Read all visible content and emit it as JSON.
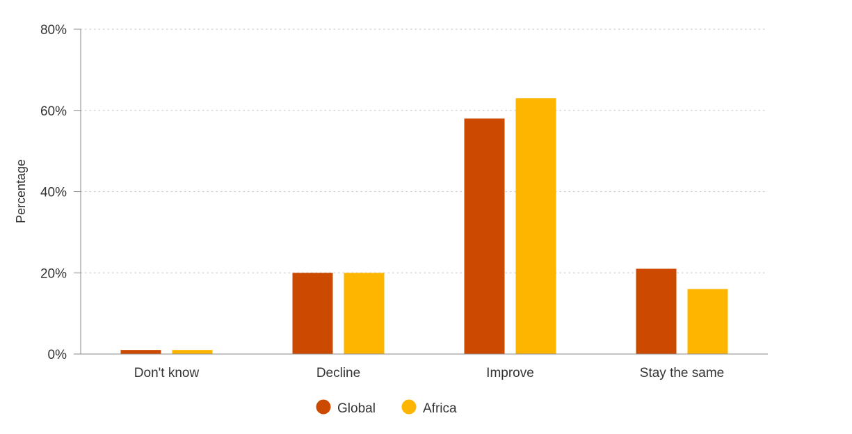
{
  "chart_data": {
    "type": "bar",
    "categories": [
      "Don't know",
      "Decline",
      "Improve",
      "Stay the same"
    ],
    "series": [
      {
        "name": "Global",
        "color": "#cc4a00",
        "values": [
          1,
          20,
          58,
          21
        ]
      },
      {
        "name": "Africa",
        "color": "#fdb500",
        "values": [
          1,
          20,
          63,
          16
        ]
      }
    ],
    "ylabel": "Percentage",
    "ylim": [
      0,
      80
    ],
    "y_ticks": [
      {
        "value": 0,
        "label": "0%"
      },
      {
        "value": 20,
        "label": "20%"
      },
      {
        "value": 40,
        "label": "40%"
      },
      {
        "value": 60,
        "label": "60%"
      },
      {
        "value": 80,
        "label": "80%"
      }
    ],
    "grid": true,
    "legend_position": "bottom"
  }
}
